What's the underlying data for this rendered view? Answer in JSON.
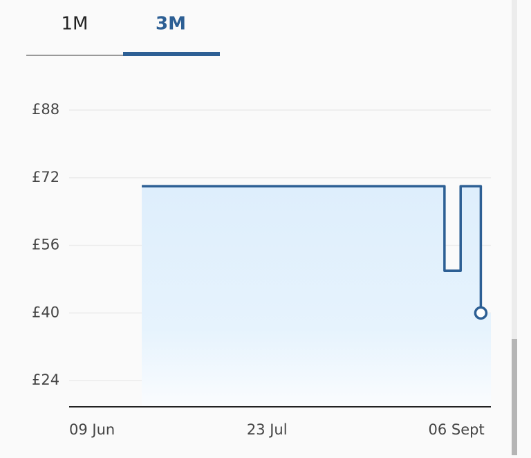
{
  "tabs": [
    "1M",
    "3M"
  ],
  "chart_data": {
    "type": "line",
    "step": true,
    "x": [
      18,
      93,
      97,
      102
    ],
    "values": [
      70,
      50,
      70,
      40
    ],
    "color": "#2d5f94",
    "xlim": [
      0,
      104.5
    ],
    "xticks": [
      {
        "value": 0,
        "label": "09 Jun"
      },
      {
        "value": 44,
        "label": "23 Jul"
      },
      {
        "value": 89,
        "label": "06 Sept"
      }
    ],
    "ylim": [
      18,
      94.2
    ],
    "yticks": [
      {
        "value": 88,
        "label": "£88"
      },
      {
        "value": 72,
        "label": "£72"
      },
      {
        "value": 56,
        "label": "£56"
      },
      {
        "value": 40,
        "label": "£40"
      },
      {
        "value": 24,
        "label": "£24"
      }
    ],
    "grid": true
  }
}
